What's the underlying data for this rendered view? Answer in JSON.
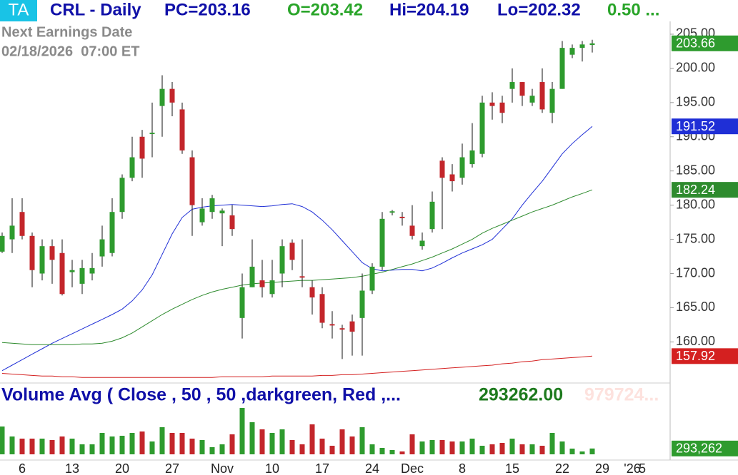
{
  "header": {
    "badge": "TA",
    "symbol": "CRL - Daily",
    "pc": "PC=203.16",
    "open": "O=203.42",
    "high": "Hi=204.19",
    "low": "Lo=202.32",
    "change": "0.50 ...",
    "earnings_label": "Next Earnings Date",
    "earnings_date": "02/18/2026  07:00 ET"
  },
  "chart_data": [
    {
      "type": "candlestick",
      "categories": [
        null,
        null,
        "6",
        null,
        null,
        null,
        null,
        "13",
        null,
        null,
        null,
        null,
        "20",
        null,
        null,
        null,
        null,
        "27",
        null,
        null,
        null,
        null,
        "Nov",
        null,
        null,
        null,
        null,
        "10",
        null,
        null,
        null,
        null,
        "17",
        null,
        null,
        null,
        null,
        "24",
        null,
        null,
        null,
        "Dec",
        null,
        null,
        null,
        null,
        "8",
        null,
        null,
        null,
        null,
        "15",
        null,
        null,
        null,
        null,
        "22",
        null,
        null,
        null,
        "29",
        null,
        null,
        "'26",
        "5"
      ],
      "open": [
        173.2,
        175,
        179,
        175.5,
        170,
        174,
        173,
        170.2,
        168.5,
        170,
        172.5,
        173,
        179,
        184,
        190,
        190.4,
        194.5,
        197,
        194,
        187,
        177.5,
        179,
        178.8,
        178.5,
        163.5,
        168,
        169,
        167,
        170,
        174.5,
        169.6,
        168,
        167,
        162.6,
        162,
        163,
        163.5,
        167.5,
        171,
        178.9,
        178.3,
        177,
        174,
        176.5,
        186.5,
        184.5,
        184,
        186,
        187.5,
        195,
        195,
        197,
        198,
        195,
        198,
        193.5,
        197,
        202,
        203,
        203.42,
        null,
        null,
        null,
        null,
        null
      ],
      "high": [
        176,
        181,
        181,
        176,
        175,
        175,
        175,
        172,
        172,
        173,
        177,
        181,
        184.5,
        190,
        191,
        195,
        199,
        198,
        195,
        188,
        181,
        181.5,
        179.5,
        180,
        170,
        175,
        172,
        172,
        175,
        175,
        175,
        169,
        168,
        164.5,
        162.5,
        164,
        170,
        171.5,
        179,
        179.3,
        179,
        180,
        176,
        182,
        187,
        186,
        189,
        192,
        196,
        196.5,
        196,
        200,
        198,
        197,
        200,
        198,
        204,
        203.5,
        204,
        204.19,
        null,
        null,
        null,
        null,
        null
      ],
      "low": [
        173,
        173,
        175,
        168,
        169,
        168.5,
        166.8,
        168,
        167,
        169,
        171,
        172.5,
        178,
        183.5,
        184,
        187,
        190,
        193,
        187.5,
        175.5,
        177,
        178,
        174,
        175.5,
        160.5,
        168,
        166.5,
        166.5,
        168,
        170.5,
        168,
        164,
        162,
        160.5,
        157.5,
        158,
        158,
        167,
        170.5,
        178.5,
        177,
        175,
        173.5,
        176,
        176.5,
        182,
        183,
        185.5,
        187,
        192.5,
        192,
        195,
        194.5,
        194.5,
        193.5,
        192,
        197,
        201.5,
        201,
        202.32,
        null,
        null,
        null,
        null,
        null
      ],
      "close": [
        175.5,
        177,
        175.5,
        170.5,
        174,
        172,
        167,
        170.5,
        170.8,
        170.8,
        175,
        179,
        184,
        187,
        186.8,
        190.6,
        197,
        195,
        188,
        180,
        179.5,
        181,
        179.2,
        176.5,
        168,
        171,
        168,
        169,
        174,
        172,
        169.4,
        166.5,
        162.8,
        162.4,
        161.8,
        161.5,
        167.5,
        171,
        178,
        179.1,
        178.1,
        175.5,
        174.8,
        180.5,
        184,
        183.5,
        187,
        188,
        195,
        194.5,
        193.5,
        198,
        196,
        196,
        194,
        197,
        203,
        203,
        203.5,
        203.66,
        null,
        null,
        null,
        null,
        null
      ],
      "up_color": "#2e9b2e",
      "down_color": "#c3262b",
      "last_label": "203.66",
      "ylim": [
        154.2,
        210
      ],
      "yticks": [
        {
          "value": 160,
          "label": "160.00"
        },
        {
          "value": 165,
          "label": "165.00"
        },
        {
          "value": 170,
          "label": "170.00"
        },
        {
          "value": 175,
          "label": "175.00"
        },
        {
          "value": 180,
          "label": "180.00"
        },
        {
          "value": 185,
          "label": "185.00"
        },
        {
          "value": 190,
          "label": "190.00"
        },
        {
          "value": 195,
          "label": "195.00"
        },
        {
          "value": 200,
          "label": "200.00"
        },
        {
          "value": 205,
          "label": "205.00"
        }
      ],
      "lines": [
        {
          "color": "#1f2fd6",
          "last_label": "191.52",
          "values": [
            155.8,
            156.6,
            157.4,
            158.2,
            159.0,
            159.8,
            160.5,
            161.2,
            161.9,
            162.6,
            163.3,
            164.0,
            164.8,
            166.0,
            167.6,
            169.8,
            172.8,
            175.8,
            178.2,
            179.4,
            179.7,
            179.9,
            180.0,
            180.1,
            180.0,
            179.9,
            179.8,
            179.9,
            180.1,
            180.2,
            179.8,
            179.0,
            177.8,
            176.4,
            174.8,
            173.2,
            171.6,
            170.7,
            170.4,
            170.5,
            170.6,
            170.6,
            170.4,
            170.8,
            171.5,
            172.3,
            173.0,
            173.6,
            174.2,
            175.0,
            176.5,
            178.0,
            180.0,
            181.8,
            183.5,
            185.5,
            187.5,
            189.0,
            190.3,
            191.52,
            null,
            null,
            null,
            null,
            null
          ]
        },
        {
          "color": "#2e8b2e",
          "last_label": "182.24",
          "values": [
            159.9,
            159.8,
            159.7,
            159.6,
            159.6,
            159.6,
            159.6,
            159.6,
            159.7,
            159.7,
            159.8,
            160.1,
            160.6,
            161.3,
            162.2,
            163.1,
            164.0,
            164.8,
            165.5,
            166.2,
            166.8,
            167.3,
            167.7,
            168.0,
            168.3,
            168.5,
            168.6,
            168.7,
            168.8,
            168.9,
            169.0,
            169.0,
            169.1,
            169.2,
            169.3,
            169.4,
            169.6,
            169.9,
            170.2,
            170.6,
            171.0,
            171.4,
            171.9,
            172.4,
            173.0,
            173.6,
            174.3,
            175.0,
            175.9,
            176.6,
            177.2,
            177.8,
            178.4,
            179.0,
            179.5,
            180.0,
            180.6,
            181.2,
            181.7,
            182.24,
            null,
            null,
            null,
            null,
            null
          ]
        },
        {
          "color": "#d42020",
          "last_label": "157.92",
          "values": [
            155.4,
            155.3,
            155.2,
            155.1,
            155.0,
            155.0,
            154.9,
            154.9,
            154.8,
            154.8,
            154.8,
            154.8,
            154.8,
            154.8,
            154.8,
            154.8,
            154.8,
            154.8,
            154.8,
            154.8,
            154.8,
            154.8,
            154.9,
            154.9,
            154.9,
            154.9,
            154.9,
            155.0,
            155.0,
            155.0,
            155.0,
            155.0,
            155.1,
            155.1,
            155.2,
            155.2,
            155.3,
            155.4,
            155.5,
            155.6,
            155.7,
            155.8,
            155.9,
            156.0,
            156.1,
            156.2,
            156.3,
            156.4,
            156.5,
            156.6,
            156.8,
            156.9,
            157.1,
            157.2,
            157.4,
            157.5,
            157.6,
            157.7,
            157.8,
            157.92,
            null,
            null,
            null,
            null,
            null
          ]
        }
      ]
    },
    {
      "type": "bar",
      "title": "Volume Avg ( Close , 50 , 50 ,darkgreen, Red ,...",
      "value_text": "293262.00",
      "avg_text": "979724...",
      "values": [
        1404000,
        900000,
        792000,
        792000,
        792000,
        720000,
        900000,
        792000,
        504000,
        504000,
        1080000,
        900000,
        936000,
        1080000,
        1152000,
        648000,
        1368000,
        1080000,
        1080000,
        792000,
        720000,
        360000,
        504000,
        1008000,
        2340000,
        1620000,
        1260000,
        1080000,
        1260000,
        720000,
        504000,
        1512000,
        792000,
        432000,
        1260000,
        900000,
        1368000,
        504000,
        324000,
        216000,
        144000,
        1008000,
        648000,
        720000,
        720000,
        648000,
        648000,
        792000,
        432000,
        504000,
        576000,
        792000,
        504000,
        504000,
        432000,
        1080000,
        648000,
        288000,
        144000,
        293262,
        null,
        null,
        null,
        null,
        null
      ],
      "last_label": "293,262",
      "ylim": [
        0,
        3492000
      ]
    }
  ]
}
